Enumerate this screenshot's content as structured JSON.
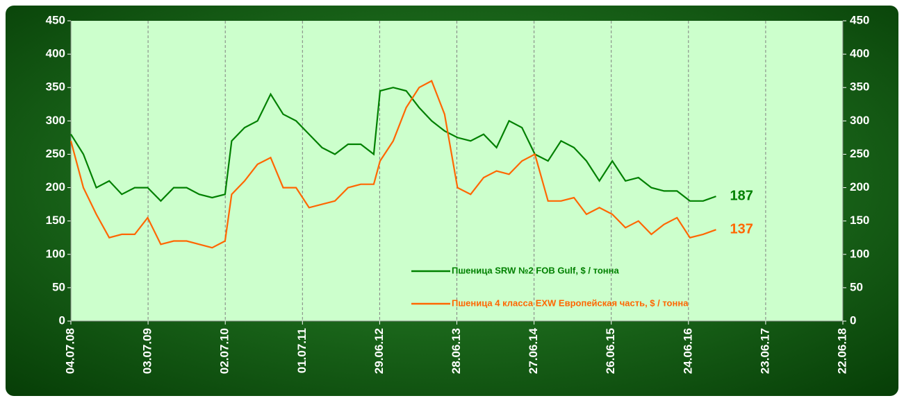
{
  "chart_data": {
    "type": "line",
    "x": [
      "04.07.08",
      "01.09.08",
      "01.11.08",
      "01.01.09",
      "01.03.09",
      "01.05.09",
      "01.07.09",
      "01.09.09",
      "01.11.09",
      "01.01.10",
      "01.03.10",
      "01.05.10",
      "01.07.10",
      "01.08.10",
      "01.10.10",
      "01.12.10",
      "01.02.11",
      "01.04.11",
      "01.06.11",
      "01.08.11",
      "01.10.11",
      "01.12.11",
      "01.02.12",
      "01.04.12",
      "01.06.12",
      "01.07.12",
      "01.09.12",
      "01.11.12",
      "01.01.13",
      "01.03.13",
      "01.05.13",
      "01.07.13",
      "01.09.13",
      "01.11.13",
      "01.01.14",
      "01.03.14",
      "01.05.14",
      "01.07.14",
      "01.09.14",
      "01.11.14",
      "01.01.15",
      "01.03.15",
      "01.05.15",
      "01.07.15",
      "01.09.15",
      "01.11.15",
      "01.01.16",
      "01.03.16",
      "01.05.16",
      "01.07.16",
      "01.09.16",
      "01.11.16"
    ],
    "series": [
      {
        "name": "Пшеница SRW №2 FOB Gulf, $ / тонна",
        "color": "#008000",
        "values": [
          280,
          250,
          200,
          210,
          190,
          200,
          200,
          180,
          200,
          200,
          190,
          185,
          190,
          270,
          290,
          300,
          340,
          310,
          300,
          280,
          260,
          250,
          265,
          265,
          250,
          345,
          350,
          345,
          320,
          300,
          285,
          275,
          270,
          280,
          260,
          300,
          290,
          250,
          240,
          270,
          260,
          240,
          210,
          240,
          210,
          215,
          200,
          195,
          195,
          180,
          180,
          187
        ],
        "end_label": 187
      },
      {
        "name": "Пшеница 4 класса EXW Европейская часть, $ / тонна",
        "color": "#ff6600",
        "values": [
          270,
          200,
          160,
          125,
          130,
          130,
          155,
          115,
          120,
          120,
          115,
          110,
          120,
          190,
          210,
          235,
          245,
          200,
          200,
          170,
          175,
          180,
          200,
          205,
          205,
          240,
          270,
          320,
          350,
          360,
          310,
          200,
          190,
          215,
          225,
          220,
          240,
          250,
          180,
          180,
          185,
          160,
          170,
          160,
          140,
          150,
          130,
          145,
          155,
          125,
          130,
          137
        ],
        "end_label": 137
      }
    ],
    "xlim": [
      "04.07.08",
      "22.06.18"
    ],
    "xticks": [
      "04.07.08",
      "03.07.09",
      "02.07.10",
      "01.07.11",
      "29.06.12",
      "28.06.13",
      "27.06.14",
      "26.06.15",
      "24.06.16",
      "23.06.17",
      "22.06.18"
    ],
    "ylim": [
      0,
      450
    ],
    "yticks": [
      0,
      50,
      100,
      150,
      200,
      250,
      300,
      350,
      400,
      450
    ],
    "y2lim": [
      0,
      450
    ],
    "y2ticks": [
      0,
      50,
      100,
      150,
      200,
      250,
      300,
      350,
      400,
      450
    ],
    "grid": "x"
  }
}
